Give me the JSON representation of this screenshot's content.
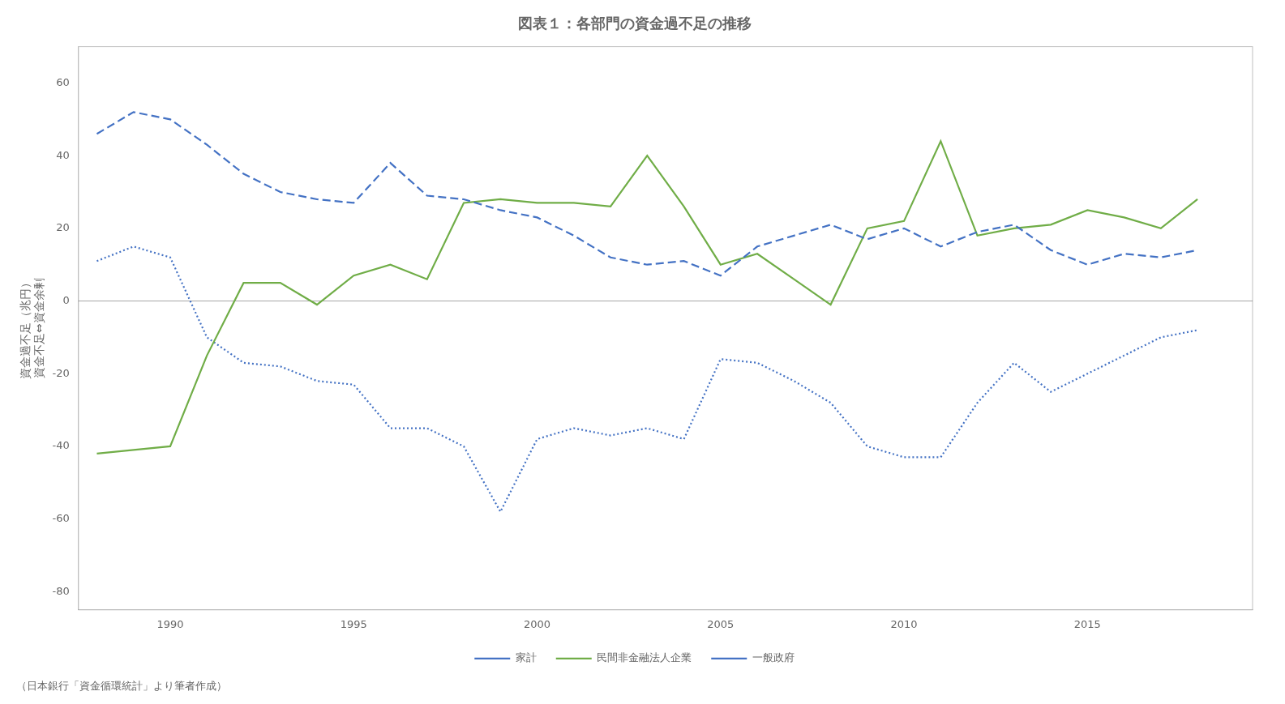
{
  "chart_data": {
    "type": "line",
    "title": "図表１：各部門の資金過不足の推移",
    "ylabel": [
      "資金過不足（兆円）",
      "資金不足⇔資金余剰"
    ],
    "annotations": [
      "（日本銀行「資金循環統計」より筆者作成）"
    ],
    "x": [
      1988,
      1989,
      1990,
      1991,
      1992,
      1993,
      1994,
      1995,
      1996,
      1997,
      1998,
      1999,
      2000,
      2001,
      2002,
      2003,
      2004,
      2005,
      2006,
      2007,
      2008,
      2009,
      2010,
      2011,
      2012,
      2013,
      2014,
      2015,
      2016,
      2017,
      2018
    ],
    "series": [
      {
        "name": "家計",
        "color": "#4472C4",
        "line_style": "dashed",
        "values": [
          46,
          52,
          50,
          43,
          35,
          30,
          28,
          27,
          38,
          29,
          28,
          25,
          23,
          18,
          12,
          10,
          11,
          7,
          15,
          18,
          21,
          17,
          20,
          15,
          19,
          21,
          14,
          10,
          13,
          12,
          14
        ]
      },
      {
        "name": "民間非金融法人企業",
        "color": "#70AD47",
        "line_style": "solid",
        "values": [
          -42,
          -41,
          -40,
          -15,
          5,
          5,
          -1,
          7,
          10,
          6,
          27,
          28,
          27,
          27,
          26,
          40,
          26,
          10,
          13,
          6,
          -1,
          20,
          22,
          44,
          18,
          20,
          21,
          25,
          23,
          20,
          28
        ]
      },
      {
        "name": "一般政府",
        "color": "#4472C4",
        "line_style": "dotted",
        "values": [
          11,
          15,
          12,
          -10,
          -17,
          -18,
          -22,
          -23,
          -35,
          -35,
          -40,
          -58,
          -38,
          -35,
          -37,
          -35,
          -38,
          -16,
          -17,
          -22,
          -28,
          -40,
          -43,
          -43,
          -28,
          -17,
          -25,
          -20,
          -15,
          -10,
          -8
        ]
      }
    ],
    "xlim": [
      1987.5,
      2019.5
    ],
    "xticks": [
      1990,
      1995,
      2000,
      2005,
      2010,
      2015
    ],
    "ylim": [
      -85,
      70
    ],
    "yticks": [
      -80,
      -60,
      -40,
      -20,
      0,
      20,
      40,
      60
    ],
    "grid": false,
    "legend": "bottom"
  }
}
